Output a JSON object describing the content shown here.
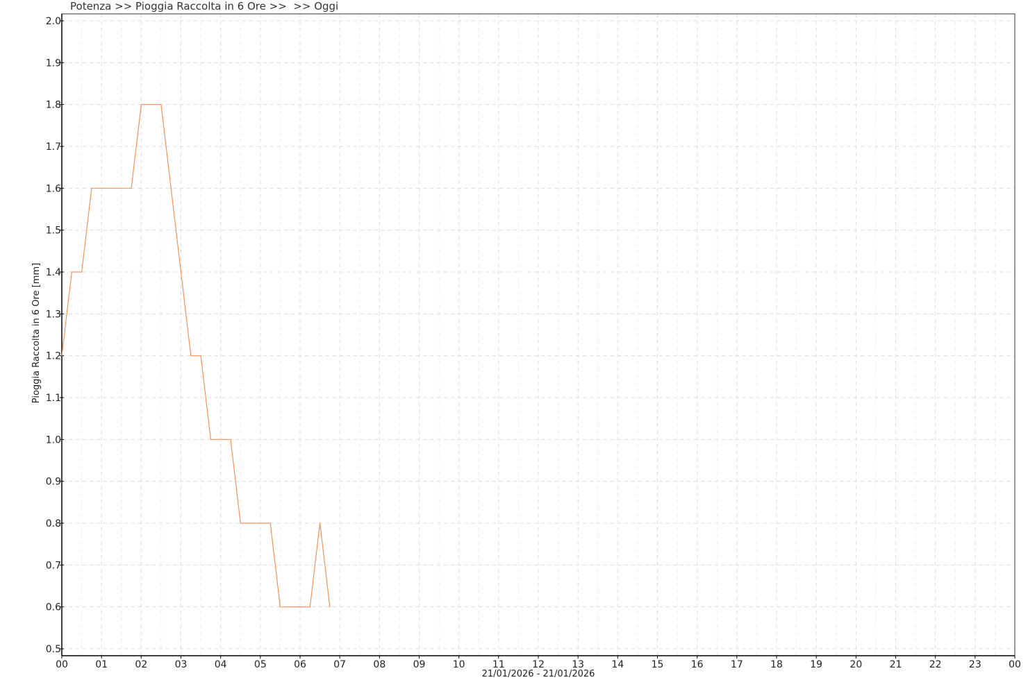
{
  "chart_data": {
    "type": "line",
    "title": "Potenza >> Pioggia Raccolta in 6 Ore >>  >> Oggi",
    "xlabel": "21/01/2026 - 21/01/2026",
    "ylabel": "Pioggia Raccolta in 6 Ore [mm]",
    "ylim": [
      0.5,
      2.0
    ],
    "y_ticks": [
      "0.5",
      "0.6",
      "0.7",
      "0.8",
      "0.9",
      "1.0",
      "1.1",
      "1.2",
      "1.3",
      "1.4",
      "1.5",
      "1.6",
      "1.7",
      "1.8",
      "1.9",
      "2.0"
    ],
    "x_ticks": [
      "00",
      "01",
      "02",
      "03",
      "04",
      "05",
      "06",
      "07",
      "08",
      "09",
      "10",
      "11",
      "12",
      "13",
      "14",
      "15",
      "16",
      "17",
      "18",
      "19",
      "20",
      "21",
      "22",
      "23",
      "00"
    ],
    "xlim_hours": [
      0,
      24
    ],
    "grid": true,
    "series": [
      {
        "color": "#f4915a",
        "x": [
          "00:00",
          "00:15",
          "00:30",
          "00:45",
          "01:00",
          "01:15",
          "01:30",
          "01:45",
          "02:00",
          "02:15",
          "02:30",
          "02:45",
          "03:00",
          "03:15",
          "03:30",
          "03:45",
          "04:00",
          "04:15",
          "04:30",
          "04:45",
          "05:00",
          "05:15",
          "05:30",
          "05:45",
          "06:00",
          "06:15",
          "06:30",
          "06:45"
        ],
        "values": [
          1.2,
          1.4,
          1.4,
          1.6,
          1.6,
          1.6,
          1.6,
          1.6,
          1.8,
          1.8,
          1.8,
          1.6,
          1.4,
          1.2,
          1.2,
          1.0,
          1.0,
          1.0,
          0.8,
          0.8,
          0.8,
          0.8,
          0.6,
          0.6,
          0.6,
          0.6,
          0.8,
          0.6
        ]
      }
    ]
  }
}
